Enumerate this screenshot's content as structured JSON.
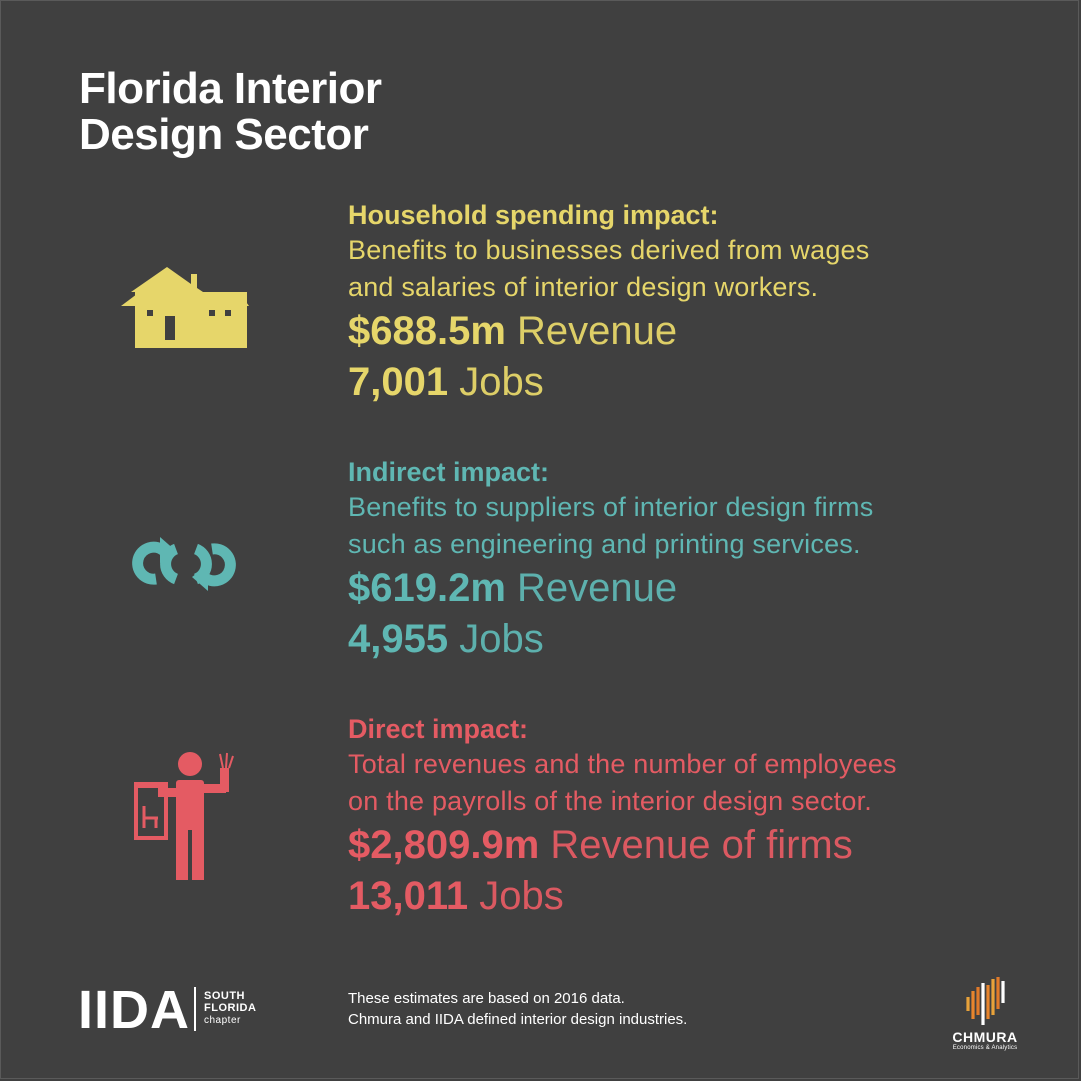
{
  "title": {
    "line1": "Florida Interior",
    "line2": "Design Sector"
  },
  "colors": {
    "background": "#404040",
    "household": "#e6d66a",
    "indirect": "#5fb7b3",
    "direct": "#e45b63"
  },
  "sections": [
    {
      "icon": "house-icon",
      "heading": "Household spending impact:",
      "desc_line1": "Benefits to businesses derived from wages",
      "desc_line2": "and salaries of interior design workers.",
      "revenue_value": "$688.5m",
      "revenue_unit": " Revenue",
      "jobs_value": "7,001",
      "jobs_unit": " Jobs"
    },
    {
      "icon": "cycle-arrows-icon",
      "heading": "Indirect impact:",
      "desc_line1": "Benefits to suppliers of interior design firms",
      "desc_line2": "such as engineering and printing services.",
      "revenue_value": "$619.2m",
      "revenue_unit": " Revenue",
      "jobs_value": "4,955",
      "jobs_unit": " Jobs"
    },
    {
      "icon": "designer-icon",
      "heading": "Direct impact:",
      "desc_line1": "Total revenues and the number of employees",
      "desc_line2": "on the payrolls of the interior design sector.",
      "revenue_value": "$2,809.9m",
      "revenue_unit": " Revenue of firms",
      "jobs_value": "13,011",
      "jobs_unit": " Jobs"
    }
  ],
  "footer": {
    "note_line1": "These estimates are based on 2016 data.",
    "note_line2": "Chmura and IIDA defined interior design industries."
  },
  "iida_logo": {
    "main": "IIDA",
    "line1": "SOUTH",
    "line2": "FLORIDA",
    "line3": "chapter"
  },
  "chmura_logo": {
    "name": "CHMURA",
    "tagline": "Economics & Analytics"
  }
}
